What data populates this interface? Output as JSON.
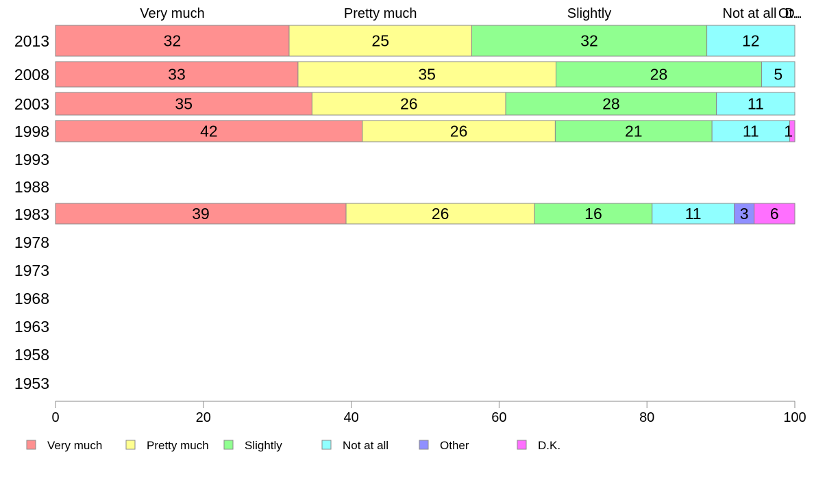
{
  "chart_data": {
    "type": "bar",
    "orientation": "horizontal",
    "stacked": true,
    "title": "",
    "xlabel": "",
    "ylabel": "",
    "xlim": [
      0,
      100
    ],
    "x_ticks": [
      0,
      20,
      40,
      60,
      80,
      100
    ],
    "grid": false,
    "legend_position": "bottom",
    "categories": [
      "2013",
      "2008",
      "2003",
      "1998",
      "1993",
      "1988",
      "1983",
      "1978",
      "1973",
      "1968",
      "1963",
      "1958",
      "1953"
    ],
    "top_labels": [
      "Very much",
      "Pretty much",
      "Slightly",
      "Not at all",
      "Ot..",
      "D.."
    ],
    "series": [
      {
        "name": "Very much",
        "color": "#ff9090",
        "values": [
          31.6,
          32.8,
          34.7,
          41.5,
          null,
          null,
          39.3,
          null,
          null,
          null,
          null,
          null,
          null
        ],
        "labels": [
          "32",
          "33",
          "35",
          "42",
          null,
          null,
          "39",
          null,
          null,
          null,
          null,
          null,
          null
        ]
      },
      {
        "name": "Pretty much",
        "color": "#ffff90",
        "values": [
          24.7,
          34.9,
          26.2,
          26.1,
          null,
          null,
          25.5,
          null,
          null,
          null,
          null,
          null,
          null
        ],
        "labels": [
          "25",
          "35",
          "26",
          "26",
          null,
          null,
          "26",
          null,
          null,
          null,
          null,
          null,
          null
        ]
      },
      {
        "name": "Slightly",
        "color": "#90ff90",
        "values": [
          31.8,
          27.8,
          28.5,
          21.2,
          null,
          null,
          15.9,
          null,
          null,
          null,
          null,
          null,
          null
        ],
        "labels": [
          "32",
          "28",
          "28",
          "21",
          null,
          null,
          "16",
          null,
          null,
          null,
          null,
          null,
          null
        ]
      },
      {
        "name": "Not at all",
        "color": "#90ffff",
        "values": [
          11.9,
          4.5,
          10.6,
          10.5,
          null,
          null,
          11.1,
          null,
          null,
          null,
          null,
          null,
          null
        ],
        "labels": [
          "12",
          "5",
          "11",
          "11",
          null,
          null,
          "11",
          null,
          null,
          null,
          null,
          null,
          null
        ]
      },
      {
        "name": "Other",
        "color": "#9090ff",
        "values": [
          0,
          0,
          0,
          0,
          null,
          null,
          2.7,
          null,
          null,
          null,
          null,
          null,
          null
        ],
        "labels": [
          null,
          null,
          null,
          null,
          null,
          null,
          "3",
          null,
          null,
          null,
          null,
          null,
          null
        ]
      },
      {
        "name": "D.K.",
        "color": "#ff70ff",
        "values": [
          0,
          0,
          0,
          0.7,
          null,
          null,
          5.5,
          null,
          null,
          null,
          null,
          null,
          null
        ],
        "labels": [
          null,
          null,
          null,
          "1",
          null,
          null,
          "6",
          null,
          null,
          null,
          null,
          null,
          null
        ]
      }
    ]
  }
}
